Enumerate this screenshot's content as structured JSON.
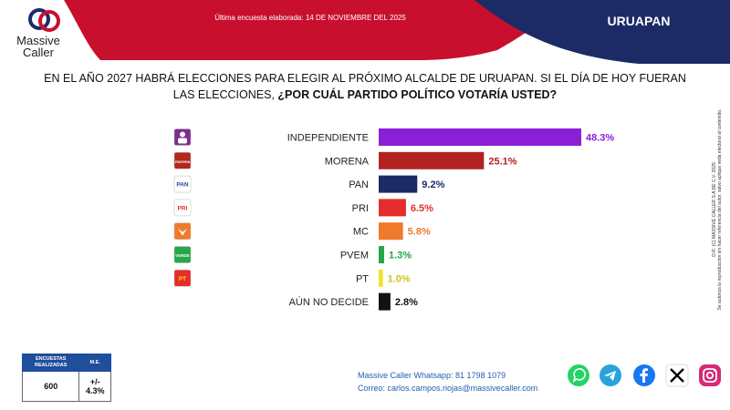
{
  "header": {
    "brand_line1": "Massive",
    "brand_line2": "Caller",
    "survey_date": "Última encuesta elaborada: 14 DE NOVIEMBRE DEL 2025",
    "city": "URUAPAN",
    "colors": {
      "red": "#c8102e",
      "navy": "#1c2a66"
    }
  },
  "question": {
    "part1": "EN EL AÑO 2027 HABRÁ ELECCIONES PARA ELEGIR AL PRÓXIMO ALCALDE DE URUAPAN. SI EL DÍA DE HOY FUERAN LAS ELECCIONES, ",
    "part2": "¿POR CUÁL PARTIDO POLÍTICO VOTARÍA USTED?"
  },
  "chart_data": {
    "type": "bar",
    "orientation": "horizontal",
    "categories": [
      "INDEPENDIENTE",
      "MORENA",
      "PAN",
      "PRI",
      "MC",
      "PVEM",
      "PT",
      "AÚN NO DECIDE"
    ],
    "values": [
      48.3,
      25.1,
      9.2,
      6.5,
      5.8,
      1.3,
      1.0,
      2.8
    ],
    "value_labels": [
      "48.3%",
      "25.1%",
      "9.2%",
      "6.5%",
      "5.8%",
      "1.3%",
      "1.0%",
      "2.8%"
    ],
    "colors": [
      "#8b1fd6",
      "#b22222",
      "#1c2a66",
      "#e52d2d",
      "#ee7a2b",
      "#26a64a",
      "#f0e22a",
      "#111111"
    ],
    "label_colors": [
      "#8b1fd6",
      "#b22222",
      "#1c2a66",
      "#e52d2d",
      "#ee7a2b",
      "#26a64a",
      "#d4c21a",
      "#111111"
    ],
    "icons": [
      {
        "name": "independiente-icon",
        "bg": "#7b2d8e",
        "fg": "#ffffff",
        "text": ""
      },
      {
        "name": "morena-icon",
        "bg": "#b5261e",
        "fg": "#ffffff",
        "text": "morena"
      },
      {
        "name": "pan-icon",
        "bg": "#ffffff",
        "fg": "#1c4aa0",
        "text": "PAN"
      },
      {
        "name": "pri-icon",
        "bg": "#ffffff",
        "fg": "#e52d2d",
        "text": "PRI"
      },
      {
        "name": "mc-icon",
        "bg": "#ee7a2b",
        "fg": "#ffffff",
        "text": ""
      },
      {
        "name": "pvem-icon",
        "bg": "#26a64a",
        "fg": "#ffffff",
        "text": "VERDE"
      },
      {
        "name": "pt-icon",
        "bg": "#e52d2d",
        "fg": "#ffe000",
        "text": "PT"
      },
      {
        "name": "",
        "bg": "",
        "fg": "",
        "text": ""
      }
    ],
    "xlim": [
      0,
      48.3
    ]
  },
  "stats": {
    "col1_header": "ENCUESTAS REALIZADAS",
    "col2_header": "M.E.",
    "col1_value": "600",
    "col2_value": "+/- 4.3%"
  },
  "contact": {
    "whatsapp": "Massive Caller Whatsapp: 81 1798 1079",
    "email_label": "Correo: ",
    "email": "carlos.campos.riojas@massivecaller.com"
  },
  "socials": [
    {
      "name": "whatsapp-icon",
      "color": "#25d366"
    },
    {
      "name": "telegram-icon",
      "color": "#2aa3dd"
    },
    {
      "name": "facebook-icon",
      "color": "#1877f2"
    },
    {
      "name": "x-icon",
      "color": "#000000"
    },
    {
      "name": "instagram-icon",
      "color": "#d62976"
    }
  ],
  "vertical_note": {
    "line1": "D.R. (C) MASSIVE CALLER S.A DE C.V. 2025",
    "line2": "Se autoriza la reproducción sin hacer referencia del autor, salvo aplique veda electoral al contenido."
  }
}
